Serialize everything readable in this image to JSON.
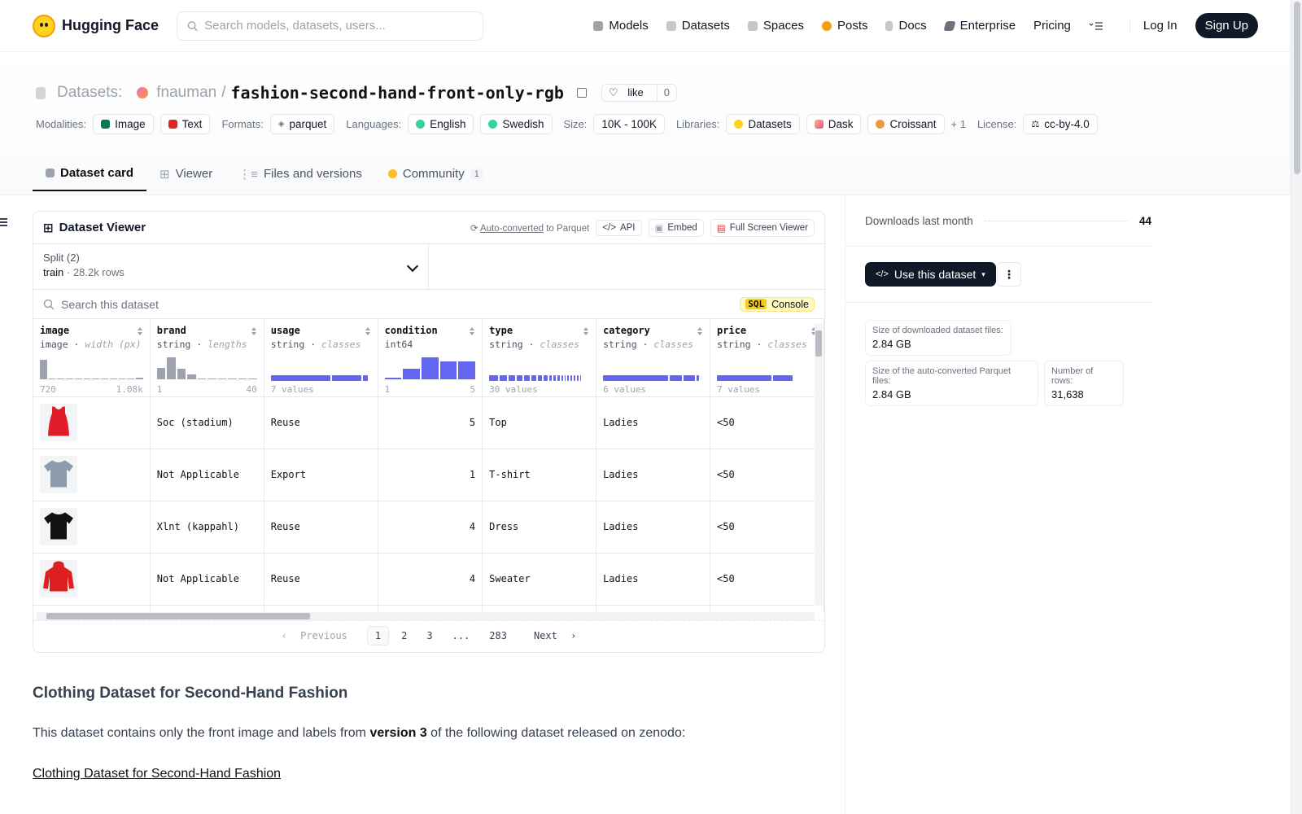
{
  "nav": {
    "brand": "Hugging Face",
    "search_placeholder": "Search models, datasets, users...",
    "links": [
      {
        "label": "Models",
        "icon": "cube-icon",
        "color": "#9ca3af"
      },
      {
        "label": "Datasets",
        "icon": "database-icon",
        "color": "#9ca3af"
      },
      {
        "label": "Spaces",
        "icon": "grid-icon",
        "color": "#9ca3af"
      },
      {
        "label": "Posts",
        "icon": "chat-bubble-icon",
        "color": "#f59e0b"
      },
      {
        "label": "Docs",
        "icon": "doc-icon",
        "color": "#9ca3af"
      },
      {
        "label": "Enterprise",
        "icon": "enterprise-icon",
        "color": "#6b7280"
      },
      {
        "label": "Pricing",
        "icon": "",
        "color": ""
      }
    ],
    "login": "Log In",
    "signup": "Sign Up"
  },
  "header": {
    "section": "Datasets:",
    "owner": "fnauman",
    "separator": "/",
    "name": "fashion-second-hand-front-only-rgb",
    "like_label": "like",
    "like_count": "0",
    "modalities_label": "Modalities:",
    "modalities": [
      "Image",
      "Text"
    ],
    "formats_label": "Formats:",
    "formats": [
      "parquet"
    ],
    "languages_label": "Languages:",
    "languages": [
      "English",
      "Swedish"
    ],
    "size_label": "Size:",
    "size": "10K - 100K",
    "libraries_label": "Libraries:",
    "libraries": [
      "Datasets",
      "Dask",
      "Croissant"
    ],
    "libraries_more": "+ 1",
    "license_label": "License:",
    "license": "cc-by-4.0"
  },
  "tabs": [
    {
      "label": "Dataset card",
      "active": true
    },
    {
      "label": "Viewer",
      "active": false
    },
    {
      "label": "Files and versions",
      "active": false
    },
    {
      "label": "Community",
      "active": false,
      "badge": "1"
    }
  ],
  "viewer": {
    "title": "Dataset Viewer",
    "auto_converted": "Auto-converted",
    "to_parquet": "to Parquet",
    "api": "API",
    "embed": "Embed",
    "fullscreen": "Full Screen Viewer",
    "split_label": "Split (2)",
    "split_value": "train",
    "split_dot": "·",
    "split_rows": "28.2k rows",
    "search_placeholder": "Search this dataset",
    "sql": "SQL",
    "console": "Console",
    "columns": [
      {
        "name": "image",
        "type": "image",
        "stat": "width (px)",
        "range_min": "720",
        "range_max": "1.08k",
        "hist": [
          0.85,
          0,
          0,
          0,
          0,
          0,
          0,
          0,
          0,
          0,
          0,
          0.08
        ]
      },
      {
        "name": "brand",
        "type": "string",
        "stat": "lengths",
        "range_min": "1",
        "range_max": "40",
        "hist": [
          0.5,
          0.95,
          0.45,
          0.2,
          0.05,
          0.05,
          0.04,
          0.04,
          0.04,
          0.04
        ]
      },
      {
        "name": "usage",
        "type": "string",
        "stat": "classes",
        "range_min": "7 values",
        "range_max": "",
        "classes": [
          0.62,
          0.3,
          0.05
        ]
      },
      {
        "name": "condition",
        "type": "int64",
        "stat": "",
        "range_min": "1",
        "range_max": "5",
        "hist": [
          0.08,
          0.45,
          0.95,
          0.8,
          0.8
        ]
      },
      {
        "name": "type",
        "type": "string",
        "stat": "classes",
        "range_min": "30 values",
        "range_max": "",
        "classes": [
          0.12,
          0.1,
          0.09,
          0.08,
          0.08,
          0.07,
          0.06,
          0.05,
          0.04,
          0.03,
          0.03,
          0.02,
          0.02,
          0.02,
          0.02,
          0.02,
          0.02,
          0.02
        ]
      },
      {
        "name": "category",
        "type": "string",
        "stat": "classes",
        "range_min": "6 values",
        "range_max": "",
        "classes": [
          0.68,
          0.13,
          0.12,
          0.03
        ]
      },
      {
        "name": "price",
        "type": "string",
        "stat": "classes",
        "range_min": "7 values",
        "range_max": "",
        "classes": [
          0.55,
          0.2
        ]
      }
    ],
    "rows": [
      {
        "garment_color": "#e11d2a",
        "garment": "tank",
        "brand": "Soc (stadium)",
        "usage": "Reuse",
        "condition": "5",
        "type": "Top",
        "category": "Ladies",
        "price": "<50"
      },
      {
        "garment_color": "#8c9bab",
        "garment": "tee",
        "brand": "Not Applicable",
        "usage": "Export",
        "condition": "1",
        "type": "T-shirt",
        "category": "Ladies",
        "price": "<50"
      },
      {
        "garment_color": "#111111",
        "garment": "tee",
        "brand": "Xlnt (kappahl)",
        "usage": "Reuse",
        "condition": "4",
        "type": "Dress",
        "category": "Ladies",
        "price": "<50"
      },
      {
        "garment_color": "#dc1f1f",
        "garment": "hoodie",
        "brand": "Not Applicable",
        "usage": "Reuse",
        "condition": "4",
        "type": "Sweater",
        "category": "Ladies",
        "price": "<50"
      }
    ],
    "pager": {
      "previous": "Previous",
      "pages": [
        "1",
        "2",
        "3",
        "...",
        "283"
      ],
      "current": "1",
      "next": "Next"
    }
  },
  "sidebar": {
    "downloads_label": "Downloads last month",
    "downloads": "44",
    "use_button": "Use this dataset",
    "downloaded_size_label": "Size of downloaded dataset files:",
    "downloaded_size": "2.84 GB",
    "parquet_size_label": "Size of the auto-converted Parquet files:",
    "parquet_size": "2.84 GB",
    "rows_label": "Number of rows:",
    "rows": "31,638"
  },
  "card": {
    "heading": "Clothing Dataset for Second-Hand Fashion",
    "intro_before": "This dataset contains only the front image and labels from",
    "intro_bold": "version 3",
    "intro_after": "of the following dataset released on zenodo:",
    "link": "Clothing Dataset for Second-Hand Fashion"
  },
  "colors": {
    "accent": "#6366f1",
    "dark": "#111827",
    "brand_yellow": "#ffd21e"
  }
}
